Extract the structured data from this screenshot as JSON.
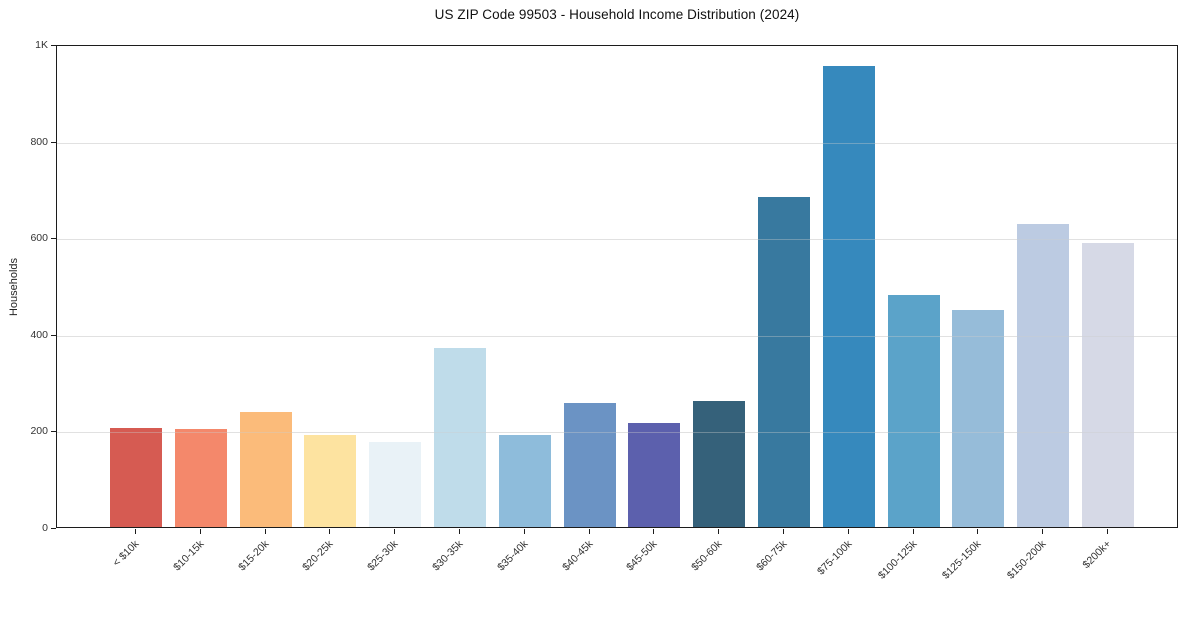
{
  "chart_data": {
    "type": "bar",
    "title": "US ZIP Code 99503 - Household Income Distribution (2024)",
    "xlabel": "",
    "ylabel": "Households",
    "categories": [
      "< $10k",
      "$10-15k",
      "$15-20k",
      "$20-25k",
      "$25-30k",
      "$30-35k",
      "$35-40k",
      "$40-45k",
      "$45-50k",
      "$50-60k",
      "$60-75k",
      "$75-100k",
      "$100-125k",
      "$125-150k",
      "$150-200k",
      "$200k+"
    ],
    "values": [
      206,
      202,
      238,
      191,
      176,
      371,
      190,
      256,
      216,
      261,
      684,
      954,
      481,
      450,
      627,
      588
    ],
    "bar_colors": [
      "#d65b52",
      "#f4886b",
      "#fbbb7a",
      "#fde3a0",
      "#e9f2f7",
      "#bfdcea",
      "#8ebcdb",
      "#6b93c4",
      "#5c60ad",
      "#35617a",
      "#38799f",
      "#3689bd",
      "#5ba3c9",
      "#96bcd9",
      "#bccbe2",
      "#d6d9e6"
    ],
    "ylim": [
      0,
      1000
    ],
    "yticks": [
      {
        "value": 0,
        "label": "0"
      },
      {
        "value": 200,
        "label": "200"
      },
      {
        "value": 400,
        "label": "400"
      },
      {
        "value": 600,
        "label": "600"
      },
      {
        "value": 800,
        "label": "800"
      },
      {
        "value": 1000,
        "label": "1K"
      }
    ],
    "grid": "horizontal",
    "legend_position": "none",
    "x_label_rotation_deg": 45
  },
  "colors": {
    "background": "#ffffff",
    "axis": "#1c1c1c",
    "gridline": "#ededed",
    "tick_label": "#333333",
    "title_text": "#111111"
  }
}
